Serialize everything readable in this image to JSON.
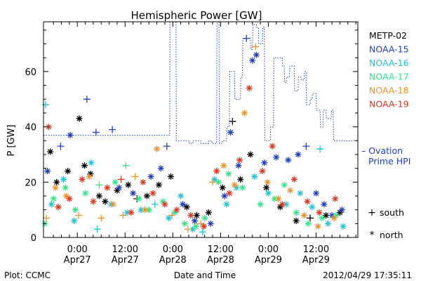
{
  "chart_data": {
    "type": "scatter",
    "title": "Hemispheric Power [GW]",
    "ylabel": "P [GW]",
    "xlabel": "Date and Time",
    "ylim": [
      0,
      78
    ],
    "yticks": [
      0,
      20,
      40,
      60
    ],
    "x_range_hours": [
      -8.5,
      70.5
    ],
    "x_units": "hours since 2012-04-27 00:00 UT",
    "xticks": [
      {
        "x": 0,
        "time": "0:00",
        "date": "Apr27"
      },
      {
        "x": 12,
        "time": "12:00",
        "date": "Apr27"
      },
      {
        "x": 24,
        "time": "0:00",
        "date": "Apr28"
      },
      {
        "x": 36,
        "time": "12:00",
        "date": "Apr28"
      },
      {
        "x": 48,
        "time": "0:00",
        "date": "Apr29"
      },
      {
        "x": 60,
        "time": "12:00",
        "date": "Apr29"
      }
    ],
    "grid": false,
    "legend_position": "right",
    "series": [
      {
        "name": "METP-02",
        "color": "#000000",
        "points": [
          [
            -6.8,
            31,
            "north"
          ],
          [
            -5.2,
            20,
            "north"
          ],
          [
            -2.4,
            24,
            "north"
          ],
          [
            0.5,
            43,
            "north"
          ],
          [
            1.8,
            26,
            "north"
          ],
          [
            3.3,
            23,
            "north"
          ],
          [
            5.5,
            15,
            "north"
          ],
          [
            7.0,
            13,
            "north"
          ],
          [
            10.0,
            17,
            "north"
          ],
          [
            12.8,
            19,
            "north"
          ],
          [
            15.0,
            14,
            "south"
          ],
          [
            17.5,
            15,
            "north"
          ],
          [
            20.5,
            19,
            "north"
          ],
          [
            23.5,
            22,
            "north"
          ],
          [
            27.5,
            11,
            "north"
          ],
          [
            30.0,
            8,
            "north"
          ],
          [
            33.0,
            9,
            "north"
          ],
          [
            36.5,
            18,
            "north"
          ],
          [
            39.0,
            42,
            "south"
          ],
          [
            41.0,
            21,
            "north"
          ],
          [
            43.5,
            30,
            "north"
          ],
          [
            47.5,
            18,
            "north"
          ],
          [
            51.0,
            11,
            "north"
          ],
          [
            55.0,
            6,
            "north"
          ],
          [
            58.5,
            7,
            "south"
          ],
          [
            62.5,
            8,
            "north"
          ],
          [
            66.0,
            9,
            "north"
          ]
        ]
      },
      {
        "name": "NOAA-15",
        "color": "#1f3fbf",
        "points": [
          [
            -7.5,
            24,
            "north"
          ],
          [
            -4.2,
            33,
            "south"
          ],
          [
            -1.8,
            37,
            "north"
          ],
          [
            2.4,
            50,
            "south"
          ],
          [
            4.7,
            38,
            "south"
          ],
          [
            8.8,
            39,
            "south"
          ],
          [
            10.5,
            18,
            "north"
          ],
          [
            14.0,
            16,
            "north"
          ],
          [
            18.5,
            22,
            "north"
          ],
          [
            21.0,
            25,
            "north"
          ],
          [
            22.5,
            33,
            "south"
          ],
          [
            26.5,
            12,
            "north"
          ],
          [
            29.5,
            6,
            "north"
          ],
          [
            33.5,
            5,
            "north"
          ],
          [
            37.0,
            15,
            "north"
          ],
          [
            38.5,
            38,
            "north"
          ],
          [
            40.5,
            26,
            "north"
          ],
          [
            42.5,
            72,
            "south"
          ],
          [
            44.0,
            64,
            "north"
          ],
          [
            45.0,
            66,
            "north"
          ],
          [
            47.0,
            27,
            "north"
          ],
          [
            50.0,
            29,
            "north"
          ],
          [
            53.0,
            28,
            "north"
          ],
          [
            55.5,
            30,
            "north"
          ],
          [
            57.5,
            33,
            "south"
          ],
          [
            60.0,
            16,
            "north"
          ],
          [
            62.0,
            12,
            "north"
          ],
          [
            64.0,
            8,
            "north"
          ],
          [
            66.5,
            10,
            "north"
          ]
        ]
      },
      {
        "name": "NOAA-16",
        "color": "#22c3d6",
        "points": [
          [
            -8.0,
            48,
            "south"
          ],
          [
            -6.5,
            12,
            "north"
          ],
          [
            -3.5,
            21,
            "north"
          ],
          [
            -0.8,
            6,
            "north"
          ],
          [
            3.5,
            27,
            "north"
          ],
          [
            5.0,
            3,
            "south"
          ],
          [
            8.5,
            12,
            "north"
          ],
          [
            12.5,
            9,
            "north"
          ],
          [
            16.0,
            10,
            "north"
          ],
          [
            19.5,
            12,
            "south"
          ],
          [
            23.0,
            7,
            "north"
          ],
          [
            26.0,
            15,
            "north"
          ],
          [
            29.0,
            3,
            "north"
          ],
          [
            31.5,
            2,
            "south"
          ],
          [
            34.5,
            21,
            "north"
          ],
          [
            37.5,
            12,
            "north"
          ],
          [
            40.0,
            18,
            "north"
          ],
          [
            44.5,
            22,
            "north"
          ],
          [
            48.0,
            16,
            "north"
          ],
          [
            52.5,
            12,
            "north"
          ],
          [
            56.0,
            16,
            "north"
          ],
          [
            59.0,
            11,
            "north"
          ],
          [
            61.0,
            32,
            "south"
          ],
          [
            63.0,
            5,
            "north"
          ],
          [
            66.8,
            4,
            "north"
          ]
        ]
      },
      {
        "name": "NOAA-17",
        "color": "#2fe88a",
        "points": [
          [
            -8.2,
            5,
            "north"
          ],
          [
            -6.0,
            14,
            "north"
          ],
          [
            -3.0,
            18,
            "north"
          ],
          [
            -0.5,
            10,
            "north"
          ],
          [
            2.0,
            16,
            "north"
          ],
          [
            5.5,
            19,
            "south"
          ],
          [
            9.5,
            20,
            "north"
          ],
          [
            12.2,
            26,
            "south"
          ],
          [
            15.5,
            14,
            "north"
          ],
          [
            18.0,
            10,
            "north"
          ],
          [
            21.5,
            13,
            "north"
          ],
          [
            24.5,
            9,
            "north"
          ],
          [
            27.0,
            5,
            "north"
          ],
          [
            29.8,
            4,
            "north"
          ],
          [
            32.0,
            7,
            "north"
          ],
          [
            35.5,
            20,
            "north"
          ],
          [
            38.0,
            23,
            "north"
          ],
          [
            41.5,
            18,
            "north"
          ],
          [
            46.0,
            12,
            "north"
          ],
          [
            49.5,
            14,
            "north"
          ],
          [
            52.0,
            19,
            "north"
          ],
          [
            55.0,
            9,
            "north"
          ],
          [
            58.0,
            5,
            "north"
          ],
          [
            61.5,
            7,
            "north"
          ],
          [
            65.0,
            8,
            "north"
          ]
        ]
      },
      {
        "name": "NOAA-18",
        "color": "#f0922a",
        "points": [
          [
            -7.8,
            7,
            "south"
          ],
          [
            -5.5,
            18,
            "north"
          ],
          [
            -2.8,
            15,
            "north"
          ],
          [
            0.3,
            8,
            "south"
          ],
          [
            3.0,
            22,
            "north"
          ],
          [
            6.0,
            7,
            "south"
          ],
          [
            9.0,
            12,
            "north"
          ],
          [
            11.5,
            8,
            "south"
          ],
          [
            14.5,
            22,
            "south"
          ],
          [
            17.0,
            10,
            "north"
          ],
          [
            20.0,
            32,
            "north"
          ],
          [
            23.8,
            8,
            "south"
          ],
          [
            27.8,
            3,
            "south"
          ],
          [
            31.0,
            5,
            "south"
          ],
          [
            34.0,
            20,
            "south"
          ],
          [
            36.8,
            26,
            "north"
          ],
          [
            39.5,
            19,
            "north"
          ],
          [
            42.0,
            45,
            "north"
          ],
          [
            44.8,
            69,
            "south"
          ],
          [
            47.8,
            20,
            "north"
          ],
          [
            50.5,
            14,
            "north"
          ],
          [
            53.5,
            17,
            "north"
          ],
          [
            57.0,
            8,
            "north"
          ],
          [
            60.5,
            4,
            "north"
          ],
          [
            64.5,
            7,
            "north"
          ]
        ]
      },
      {
        "name": "NOAA-19",
        "color": "#e0371e",
        "points": [
          [
            -7.2,
            40,
            "north"
          ],
          [
            -4.8,
            11,
            "north"
          ],
          [
            -2.0,
            14,
            "north"
          ],
          [
            1.2,
            21,
            "north"
          ],
          [
            4.0,
            13,
            "north"
          ],
          [
            7.5,
            18,
            "north"
          ],
          [
            11.0,
            21,
            "south"
          ],
          [
            13.5,
            9,
            "north"
          ],
          [
            16.5,
            20,
            "north"
          ],
          [
            19.0,
            16,
            "north"
          ],
          [
            22.0,
            12,
            "north"
          ],
          [
            25.0,
            10,
            "north"
          ],
          [
            28.5,
            8,
            "north"
          ],
          [
            31.8,
            4,
            "north"
          ],
          [
            35.0,
            24,
            "north"
          ],
          [
            38.2,
            16,
            "north"
          ],
          [
            40.8,
            28,
            "north"
          ],
          [
            43.2,
            54,
            "north"
          ],
          [
            46.5,
            24,
            "north"
          ],
          [
            49.0,
            33,
            "north"
          ],
          [
            51.5,
            12,
            "north"
          ],
          [
            54.5,
            21,
            "north"
          ],
          [
            57.8,
            13,
            "north"
          ],
          [
            60.8,
            9,
            "north"
          ],
          [
            64.8,
            14,
            "north"
          ]
        ]
      }
    ],
    "ovation_prime": {
      "name": "Ovation Prime HPI",
      "legend_lines": [
        "– Ovation",
        "Prime HPI"
      ],
      "color": "#1f3fbf",
      "x": [
        -8.5,
        22.5,
        22.6,
        23.2,
        23.3,
        24.8,
        24.9,
        28.0,
        28.1,
        29.0,
        29.1,
        31.0,
        31.1,
        33.0,
        33.1,
        33.8,
        33.9,
        35.0,
        35.1,
        35.6,
        35.7,
        36.4,
        36.5,
        37.5,
        37.6,
        38.2,
        38.3,
        39.5,
        39.6,
        41.0,
        41.1,
        41.5,
        41.6,
        43.5,
        43.6,
        44.0,
        44.1,
        45.0,
        45.1,
        45.5,
        45.6,
        46.5,
        46.6,
        47.0,
        47.1,
        48.5,
        48.6,
        49.3,
        49.4,
        51.5,
        51.6,
        52.0,
        52.1,
        52.5,
        52.6,
        53.3,
        53.4,
        54.5,
        54.6,
        55.5,
        55.6,
        56.2,
        56.3,
        57.0,
        57.1,
        57.5,
        57.6,
        58.5,
        58.6,
        59.0,
        59.1,
        60.0,
        60.1,
        61.0,
        61.1,
        61.7,
        61.8,
        62.5,
        62.6,
        63.8,
        63.9,
        64.3,
        64.4,
        66.3,
        66.4,
        70.5
      ],
      "y": [
        37,
        37,
        37,
        37,
        78,
        78,
        35,
        35,
        34,
        34,
        35,
        35,
        34,
        34,
        35,
        35,
        34,
        34,
        78,
        78,
        34,
        34,
        35,
        35,
        40,
        40,
        60,
        60,
        50,
        50,
        58,
        58,
        72,
        72,
        68,
        68,
        77,
        77,
        76,
        76,
        70,
        70,
        76,
        76,
        35,
        35,
        40,
        40,
        65,
        65,
        62,
        62,
        56,
        56,
        58,
        58,
        62,
        62,
        53,
        53,
        58,
        58,
        57,
        57,
        60,
        60,
        48,
        48,
        50,
        50,
        52,
        52,
        46,
        46,
        40,
        40,
        46,
        46,
        43,
        43,
        46,
        46,
        35,
        35,
        35,
        35
      ]
    },
    "marker_legend": [
      {
        "symbol": "+",
        "label": "south"
      },
      {
        "symbol": "*",
        "label": "north"
      }
    ]
  },
  "footer": {
    "left": "Plot: CCMC",
    "right": "2012/04/29 17:35:11"
  }
}
